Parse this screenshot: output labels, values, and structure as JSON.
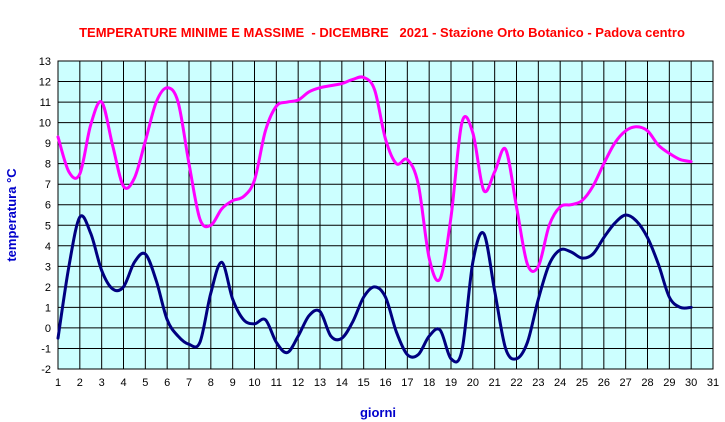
{
  "chart_data": {
    "type": "line",
    "title": "TEMPERATURE MINIME E MASSIME  - DICEMBRE   2021 - Stazione Orto Botanico - Padova centro",
    "xlabel": "giorni",
    "ylabel": "temperatura °C",
    "xlim": [
      1,
      31
    ],
    "ylim": [
      -2,
      13
    ],
    "x_ticks": [
      "1",
      "2",
      "3",
      "4",
      "5",
      "6",
      "7",
      "8",
      "9",
      "10",
      "11",
      "12",
      "13",
      "14",
      "15",
      "16",
      "17",
      "18",
      "19",
      "20",
      "21",
      "22",
      "23",
      "24",
      "25",
      "26",
      "27",
      "28",
      "29",
      "30",
      "31"
    ],
    "y_ticks": [
      "-2",
      "-1",
      "0",
      "1",
      "2",
      "3",
      "4",
      "5",
      "6",
      "7",
      "8",
      "9",
      "10",
      "11",
      "12",
      "13"
    ],
    "grid": true,
    "legend": "none",
    "colors": {
      "plot_background": "#ccffff",
      "grid": "#000000",
      "title": "#ff0000",
      "axis_titles": "#0000cc"
    },
    "series": [
      {
        "color": "#ff00ff",
        "x": [
          1,
          1.5,
          2,
          2.5,
          3,
          3.5,
          4,
          4.5,
          5,
          5.5,
          6,
          6.5,
          7,
          7.5,
          8,
          8.5,
          9,
          9.5,
          10,
          10.5,
          11,
          11.5,
          12,
          12.5,
          13,
          13.5,
          14,
          14.5,
          15,
          15.5,
          16,
          16.5,
          17,
          17.5,
          18,
          18.5,
          19,
          19.5,
          20,
          20.5,
          21,
          21.5,
          22,
          22.5,
          23,
          23.5,
          24,
          24.5,
          25,
          25.5,
          26,
          26.5,
          27,
          27.5,
          28,
          28.5,
          29,
          29.5,
          30
        ],
        "values": [
          9.3,
          7.6,
          7.5,
          9.9,
          11.0,
          8.9,
          6.9,
          7.3,
          9.1,
          11.0,
          11.7,
          11.0,
          8.0,
          5.3,
          5.0,
          5.8,
          6.2,
          6.4,
          7.2,
          9.6,
          10.8,
          11.0,
          11.1,
          11.5,
          11.7,
          11.8,
          11.9,
          12.1,
          12.2,
          11.6,
          9.2,
          8.0,
          8.2,
          7.0,
          3.4,
          2.4,
          5.4,
          10.0,
          9.5,
          6.7,
          7.6,
          8.7,
          5.9,
          3.1,
          3.0,
          5.0,
          5.9,
          6.0,
          6.2,
          6.9,
          8.0,
          9.0,
          9.6,
          9.8,
          9.6,
          8.9,
          8.5,
          8.2,
          8.1
        ]
      },
      {
        "color": "#000080",
        "x": [
          1,
          1.5,
          2,
          2.5,
          3,
          3.5,
          4,
          4.5,
          5,
          5.5,
          6,
          6.5,
          7,
          7.5,
          8,
          8.5,
          9,
          9.5,
          10,
          10.5,
          11,
          11.5,
          12,
          12.5,
          13,
          13.5,
          14,
          14.5,
          15,
          15.5,
          16,
          16.5,
          17,
          17.5,
          18,
          18.5,
          19,
          19.5,
          20,
          20.5,
          21,
          21.5,
          22,
          22.5,
          23,
          23.5,
          24,
          24.5,
          25,
          25.5,
          26,
          26.5,
          27,
          27.5,
          28,
          28.5,
          29,
          29.5,
          30
        ],
        "values": [
          -0.5,
          3.0,
          5.4,
          4.6,
          2.8,
          1.9,
          2.0,
          3.2,
          3.6,
          2.3,
          0.4,
          -0.4,
          -0.8,
          -0.7,
          1.7,
          3.2,
          1.4,
          0.4,
          0.2,
          0.4,
          -0.7,
          -1.2,
          -0.4,
          0.6,
          0.8,
          -0.4,
          -0.5,
          0.3,
          1.5,
          2.0,
          1.5,
          -0.2,
          -1.3,
          -1.3,
          -0.4,
          -0.1,
          -1.5,
          -1.1,
          3.2,
          4.6,
          1.8,
          -1.0,
          -1.5,
          -0.7,
          1.4,
          3.1,
          3.8,
          3.7,
          3.4,
          3.6,
          4.4,
          5.1,
          5.5,
          5.2,
          4.4,
          3.1,
          1.5,
          1.0,
          1.0
        ]
      }
    ]
  }
}
